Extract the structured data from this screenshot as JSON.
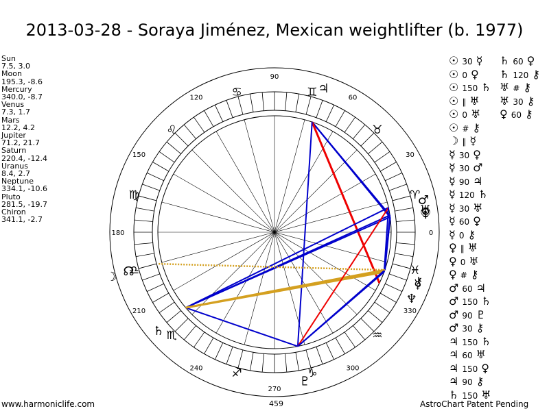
{
  "title": "2013-03-28 - Soraya Jiménez, Mexican weightlifter (b. 1977)",
  "planets": [
    {
      "name": "Sun",
      "glyph": "☉",
      "pos": "7.5, 3.0",
      "lon": 7.5
    },
    {
      "name": "Moon",
      "glyph": "☽",
      "pos": "195.3, -8.6",
      "lon": 195.3
    },
    {
      "name": "Mercury",
      "glyph": "☿",
      "pos": "340.0, -8.7",
      "lon": 340.0
    },
    {
      "name": "Venus",
      "glyph": "♀",
      "pos": "7.3, 1.7",
      "lon": 7.3
    },
    {
      "name": "Mars",
      "glyph": "♂",
      "pos": "12.2, 4.2",
      "lon": 12.2
    },
    {
      "name": "Jupiter",
      "glyph": "♃",
      "pos": "71.2, 21.7",
      "lon": 71.2
    },
    {
      "name": "Saturn",
      "glyph": "♄",
      "pos": "220.4, -12.4",
      "lon": 220.4
    },
    {
      "name": "Uranus",
      "glyph": "♅",
      "pos": "8.4, 2.7",
      "lon": 8.4
    },
    {
      "name": "Neptune",
      "glyph": "♆",
      "pos": "334.1, -10.6",
      "lon": 334.1
    },
    {
      "name": "Pluto",
      "glyph": "♇",
      "pos": "281.5, -19.7",
      "lon": 281.5
    },
    {
      "name": "Chiron",
      "glyph": "⚷",
      "pos": "341.1, -2.7",
      "lon": 341.1
    }
  ],
  "extra_points": [
    {
      "name": "North Node",
      "glyph": "☊"
    }
  ],
  "degree_labels": [
    "90",
    "60",
    "30",
    "0",
    "330",
    "300",
    "270",
    "240",
    "210",
    "180",
    "150",
    "120"
  ],
  "zodiac_glyphs": [
    "♈",
    "♉",
    "♊",
    "♋",
    "♌",
    "♍",
    "♎",
    "♏",
    "♐",
    "♑",
    "♒",
    "♓"
  ],
  "aspects_col1": [
    {
      "a": "☉",
      "angle": "30",
      "b": "☿"
    },
    {
      "a": "☉",
      "angle": "0",
      "b": "♀"
    },
    {
      "a": "☉",
      "angle": "150",
      "b": "♄"
    },
    {
      "a": "☉",
      "angle": "∥",
      "b": "♅"
    },
    {
      "a": "☉",
      "angle": "0",
      "b": "♅"
    },
    {
      "a": "☉",
      "angle": "#",
      "b": "⚷"
    },
    {
      "a": "☽",
      "angle": "∥",
      "b": "☿"
    },
    {
      "a": "☿",
      "angle": "30",
      "b": "♀"
    },
    {
      "a": "☿",
      "angle": "30",
      "b": "♂"
    },
    {
      "a": "☿",
      "angle": "90",
      "b": "♃"
    },
    {
      "a": "☿",
      "angle": "120",
      "b": "♄"
    },
    {
      "a": "☿",
      "angle": "30",
      "b": "♅"
    },
    {
      "a": "☿",
      "angle": "60",
      "b": "♀"
    },
    {
      "a": "☿",
      "angle": "0",
      "b": "⚷"
    },
    {
      "a": "♀",
      "angle": "∥",
      "b": "♅"
    },
    {
      "a": "♀",
      "angle": "0",
      "b": "♅"
    },
    {
      "a": "♀",
      "angle": "#",
      "b": "⚷"
    },
    {
      "a": "♂",
      "angle": "60",
      "b": "♃"
    },
    {
      "a": "♂",
      "angle": "150",
      "b": "♄"
    },
    {
      "a": "♂",
      "angle": "90",
      "b": "♇"
    },
    {
      "a": "♂",
      "angle": "30",
      "b": "⚷"
    },
    {
      "a": "♃",
      "angle": "150",
      "b": "♄"
    },
    {
      "a": "♃",
      "angle": "60",
      "b": "♅"
    },
    {
      "a": "♃",
      "angle": "150",
      "b": "♀"
    },
    {
      "a": "♃",
      "angle": "90",
      "b": "⚷"
    },
    {
      "a": "♄",
      "angle": "150",
      "b": "♅"
    }
  ],
  "aspects_col2": [
    {
      "a": "♄",
      "angle": "60",
      "b": "♀"
    },
    {
      "a": "♄",
      "angle": "120",
      "b": "⚷"
    },
    {
      "a": "♅",
      "angle": "#",
      "b": "⚷"
    },
    {
      "a": "♅",
      "angle": "30",
      "b": "⚷"
    },
    {
      "a": "♀",
      "angle": "60",
      "b": "⚷"
    }
  ],
  "footer": {
    "left": "www.harmoniclife.com",
    "mid": "459",
    "right": "AstroChart Patent Pending"
  },
  "colors": {
    "aspect_blue": "#0000cc",
    "aspect_red": "#ee0000",
    "aspect_gold": "#d4a020"
  }
}
